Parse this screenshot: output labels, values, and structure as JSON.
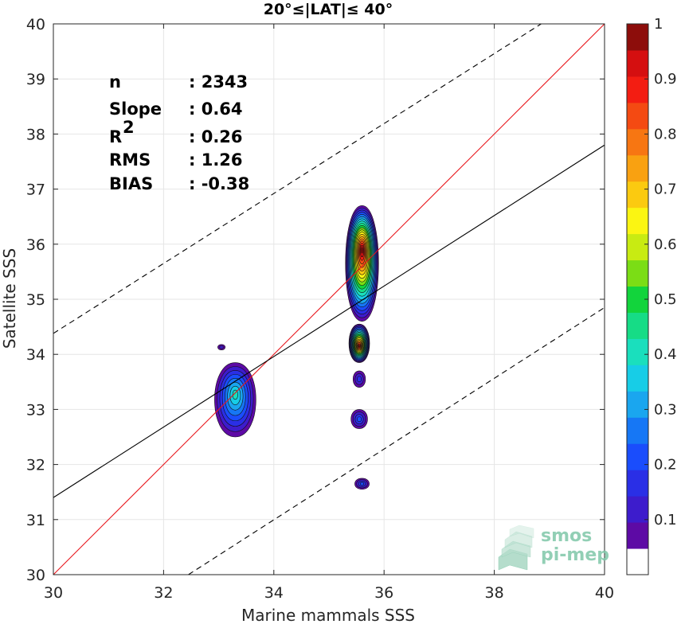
{
  "chart_data": {
    "type": "scatter",
    "title": "20°≤|LAT|≤ 40°",
    "xlabel": "Marine mammals SSS",
    "ylabel": "Satellite SSS",
    "xlim": [
      30,
      40
    ],
    "ylim": [
      30,
      40
    ],
    "xticks": [
      "30",
      "32",
      "34",
      "36",
      "38",
      "40"
    ],
    "yticks": [
      "30",
      "31",
      "32",
      "33",
      "34",
      "35",
      "36",
      "37",
      "38",
      "39",
      "40"
    ],
    "grid": true,
    "stats": [
      {
        "label": "n",
        "value": ": 2343"
      },
      {
        "label": "Slope",
        "value": ": 0.64"
      },
      {
        "label": "R",
        "sup": "2",
        "value": ": 0.26"
      },
      {
        "label": "RMS",
        "value": ": 1.26"
      },
      {
        "label": "BIAS",
        "value": ": -0.38"
      }
    ],
    "lines": {
      "identity": {
        "color": "#e8141a",
        "x": [
          30,
          40
        ],
        "y": [
          30,
          40
        ]
      },
      "regression": {
        "color": "#000000",
        "x": [
          30,
          40
        ],
        "y": [
          31.4,
          37.8
        ]
      },
      "upper_bound": {
        "color": "#000000",
        "dash": true,
        "x": [
          30,
          38.85
        ],
        "y": [
          34.38,
          40
        ]
      },
      "lower_bound": {
        "color": "#000000",
        "dash": true,
        "x": [
          32.45,
          40
        ],
        "y": [
          30,
          34.85
        ]
      }
    },
    "density_clusters": [
      {
        "x": 35.6,
        "y_min": 34.6,
        "y_max": 36.7,
        "width": 0.8,
        "peak_y": 35.9,
        "peak": 1.0
      },
      {
        "x": 35.55,
        "y_min": 33.85,
        "y_max": 34.55,
        "width": 0.5,
        "peak_y": 34.15,
        "peak": 0.95
      },
      {
        "x": 35.55,
        "y_min": 33.4,
        "y_max": 33.7,
        "width": 0.3,
        "peak_y": 33.55,
        "peak": 0.15
      },
      {
        "x": 35.55,
        "y_min": 32.65,
        "y_max": 33.0,
        "width": 0.4,
        "peak_y": 32.82,
        "peak": 0.2
      },
      {
        "x": 35.6,
        "y_min": 31.55,
        "y_max": 31.75,
        "width": 0.35,
        "peak_y": 31.65,
        "peak": 0.2
      },
      {
        "x": 33.3,
        "y_min": 32.5,
        "y_max": 33.85,
        "width": 1.0,
        "peak_y": 33.28,
        "peak": 0.38
      },
      {
        "x": 33.05,
        "y_min": 34.08,
        "y_max": 34.18,
        "width": 0.18,
        "peak_y": 34.13,
        "peak": 0.1
      }
    ],
    "colorbar": {
      "ticks": [
        "0.1",
        "0.2",
        "0.3",
        "0.4",
        "0.5",
        "0.6",
        "0.7",
        "0.8",
        "0.9",
        "1"
      ],
      "colors": [
        "#ffffff",
        "#5d0aa5",
        "#3d1ccc",
        "#2a2fe6",
        "#1a4dfc",
        "#1677f5",
        "#1aa6ef",
        "#17cde7",
        "#1adfbd",
        "#16dc86",
        "#12d43c",
        "#7bdd15",
        "#c8eb12",
        "#fbf512",
        "#fbca10",
        "#f9a111",
        "#f77612",
        "#f44a12",
        "#f31d12",
        "#d50f10",
        "#8d0d0b"
      ]
    }
  },
  "logo": {
    "line1": "smos",
    "line2": "pi-mep"
  }
}
